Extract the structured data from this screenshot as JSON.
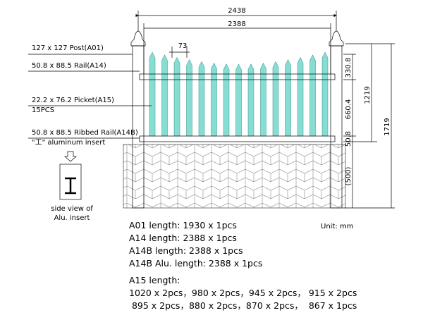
{
  "dimensions": {
    "total_width": "2438",
    "rail_width": "2388",
    "picket_gap": "73",
    "top_section": "330.8",
    "fence_height": "1219",
    "total_height": "1719",
    "picket_mid": "660.4",
    "bottom_rail": "50.8",
    "underground": "(500)"
  },
  "parts": {
    "post": "127 x 127 Post(A01)",
    "rail": "50.8 x 88.5 Rail(A14)",
    "picket": "22.2 x 76.2 Picket(A15)",
    "picket_count": "15PCS",
    "ribbed_rail": "50.8 x 88.5 Ribbed  Rail(A14B)",
    "insert": "\"工\" aluminum insert",
    "side_view": [
      "side view of",
      "Alu. insert"
    ]
  },
  "unit": "Unit: mm",
  "lengths": [
    "A01 length:    1930 x 1pcs",
    "A14 length:     2388 x 1pcs",
    "A14B length:  2388 x 1pcs",
    "A14B Alu. length:  2388 x 1pcs"
  ],
  "a15": {
    "title": "A15 length:",
    "lines": [
      "1020 x 2pcs，980 x 2pcs，945 x 2pcs，  915 x 2pcs",
      " 895 x 2pcs，880 x 2pcs，870 x 2pcs，  867 x 1pcs"
    ]
  }
}
